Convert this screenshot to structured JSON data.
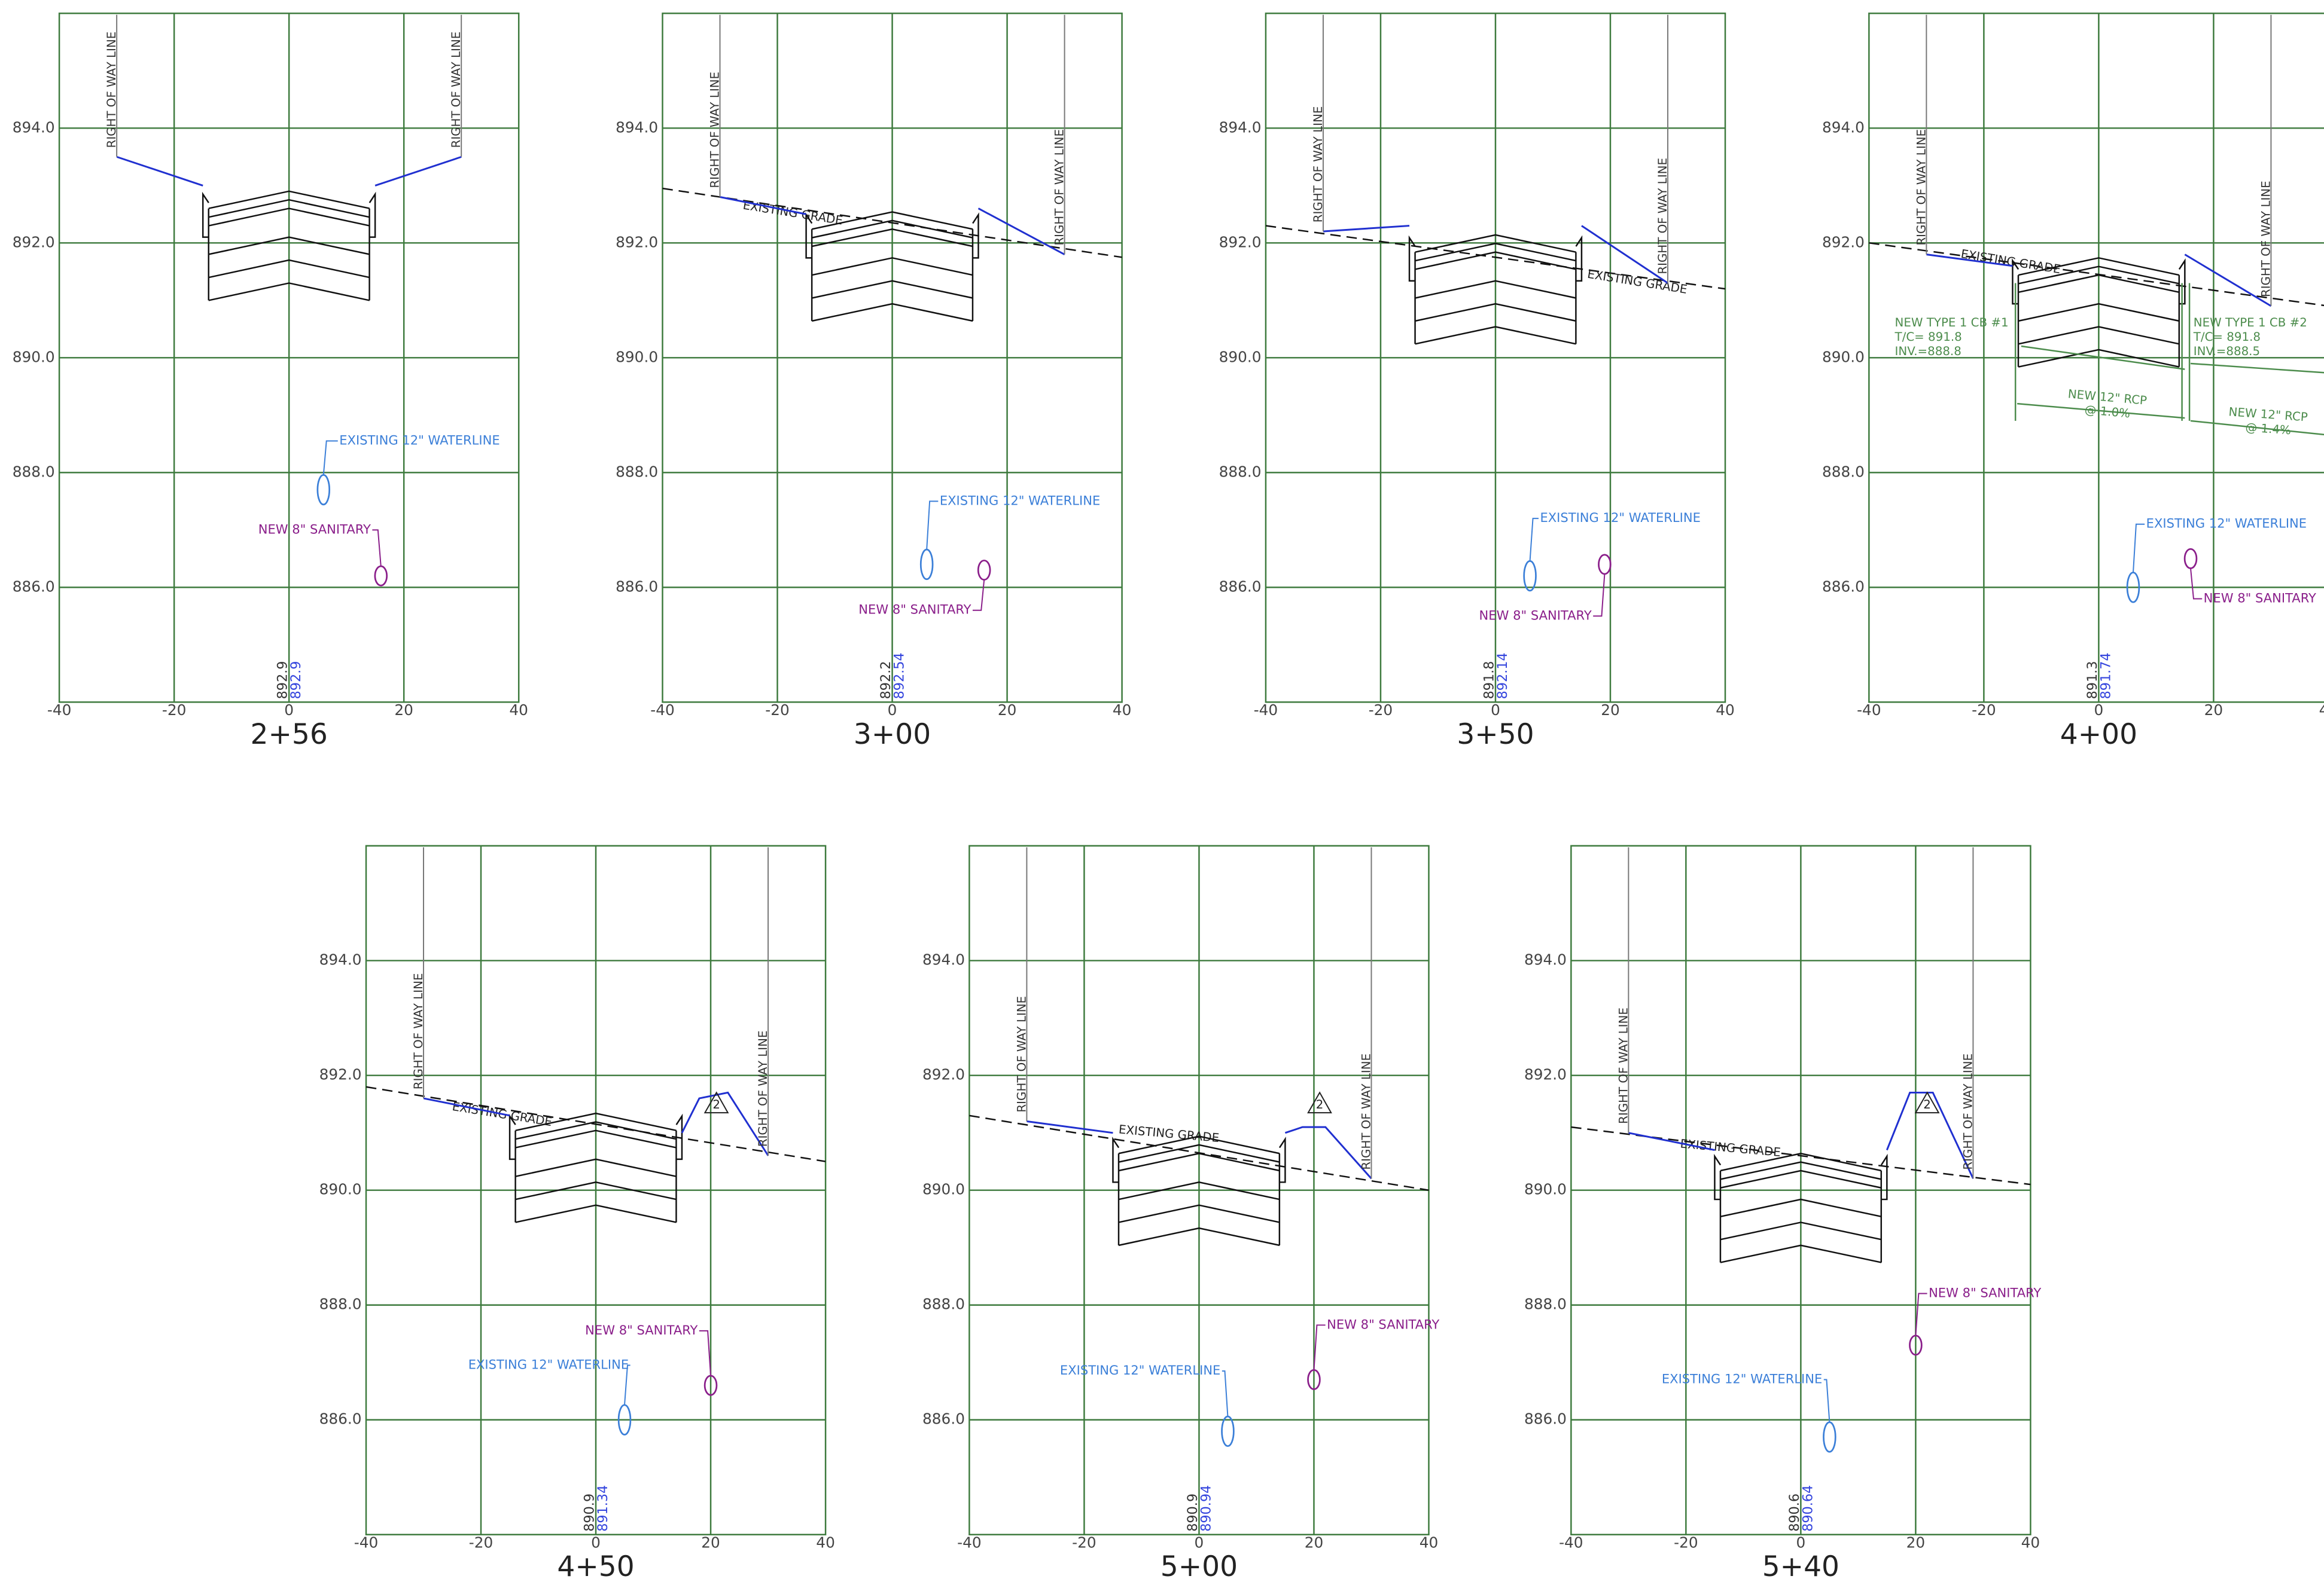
{
  "axis": {
    "yticks": [
      "894.0",
      "892.0",
      "890.0",
      "888.0",
      "886.0"
    ],
    "xticks": [
      "-40",
      "-20",
      "0",
      "20",
      "40"
    ]
  },
  "panels": [
    {
      "station": "2+56",
      "existing": "892.9",
      "proposed": "892.9",
      "row_left": "RIGHT OF WAY LINE",
      "row_right": "RIGHT OF WAY LINE",
      "waterline": "EXISTING 12\" WATERLINE",
      "sanitary": "NEW 8\" SANITARY"
    },
    {
      "station": "3+00",
      "existing": "892.2",
      "proposed": "892.54",
      "row_left": "RIGHT OF WAY LINE",
      "row_right": "RIGHT OF WAY LINE",
      "existing_grade": "EXISTING GRADE",
      "waterline": "EXISTING 12\" WATERLINE",
      "sanitary": "NEW 8\" SANITARY"
    },
    {
      "station": "3+50",
      "existing": "891.8",
      "proposed": "892.14",
      "row_left": "RIGHT OF WAY LINE",
      "row_right": "RIGHT OF WAY LINE",
      "existing_grade": "EXISTING GRADE",
      "waterline": "EXISTING 12\" WATERLINE",
      "sanitary": "NEW 8\" SANITARY"
    },
    {
      "station": "4+00",
      "existing": "891.3",
      "proposed": "891.74",
      "row_left": "RIGHT OF WAY LINE",
      "row_right": "RIGHT OF WAY LINE",
      "existing_grade": "EXISTING GRADE",
      "waterline": "EXISTING 12\" WATERLINE",
      "sanitary": "NEW 8\" SANITARY",
      "notes": {
        "cb1": [
          "NEW TYPE 1 CB #1",
          "T/C= 891.8",
          "INV.=888.8"
        ],
        "cb2": [
          "NEW TYPE 1 CB #2",
          "T/C= 891.8",
          "INV.=888.5"
        ],
        "pipe1": [
          "NEW 12\" RCP",
          "@ 1.0%"
        ],
        "pipe2": [
          "NEW 12\" RCP",
          "@ 1.4%"
        ]
      }
    },
    {
      "station": "4+50",
      "existing": "890.9",
      "proposed": "891.34",
      "row_left": "RIGHT OF WAY LINE",
      "row_right": "RIGHT OF WAY LINE",
      "existing_grade": "EXISTING GRADE",
      "waterline": "EXISTING 12\" WATERLINE",
      "sanitary": "NEW 8\" SANITARY",
      "revision": "2"
    },
    {
      "station": "5+00",
      "existing": "890.9",
      "proposed": "890.94",
      "row_left": "RIGHT OF WAY LINE",
      "row_right": "RIGHT OF WAY LINE",
      "existing_grade": "EXISTING GRADE",
      "waterline": "EXISTING 12\" WATERLINE",
      "sanitary": "NEW 8\" SANITARY",
      "revision": "2"
    },
    {
      "station": "5+40",
      "existing": "890.6",
      "proposed": "890.64",
      "row_left": "RIGHT OF WAY LINE",
      "row_right": "RIGHT OF WAY LINE",
      "existing_grade": "EXISTING GRADE",
      "waterline": "EXISTING 12\" WATERLINE",
      "sanitary": "NEW 8\" SANITARY",
      "revision": "2"
    }
  ]
}
